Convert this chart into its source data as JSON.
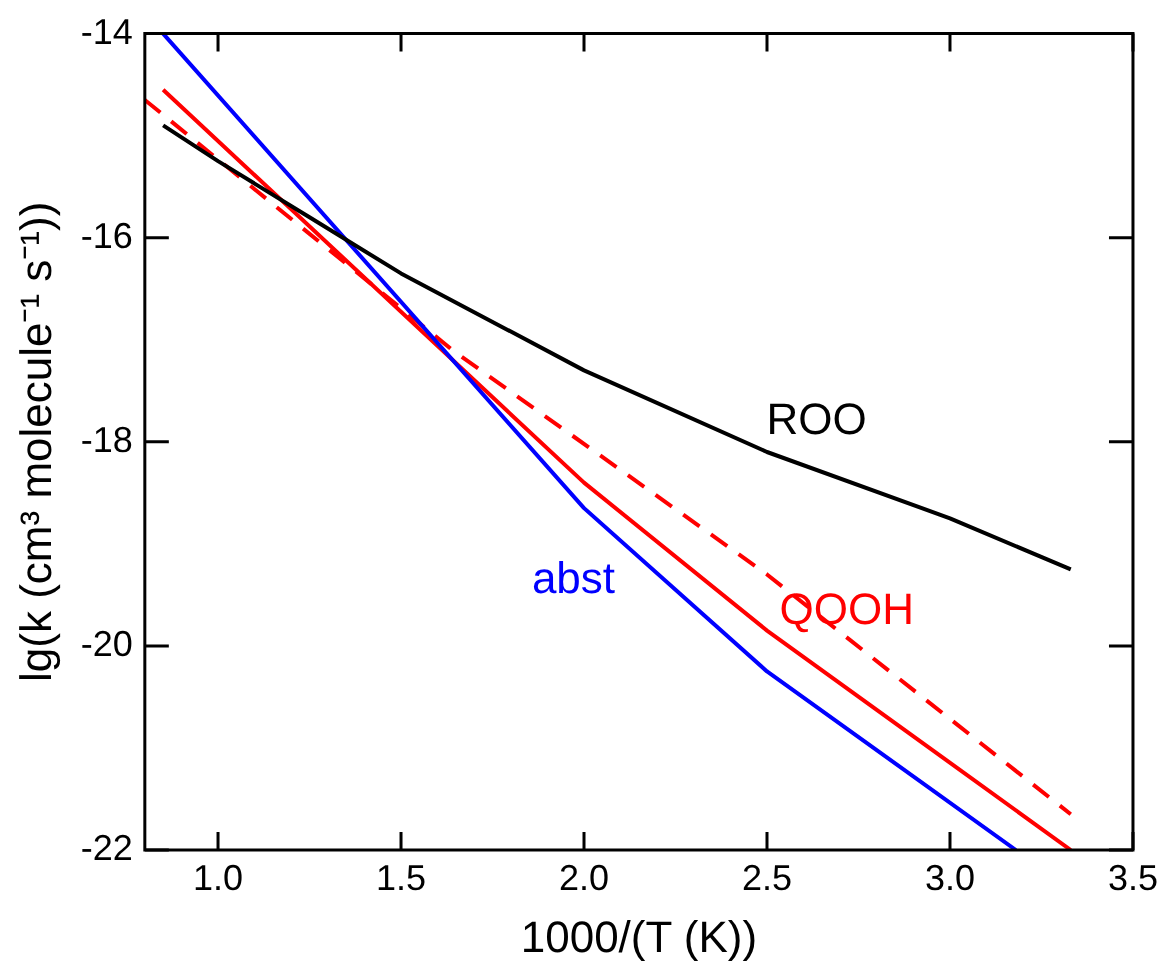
{
  "chart_data": {
    "type": "line",
    "xlabel": "1000/(T (K))",
    "ylabel": "lg(k (cm³ molecule⁻¹ s⁻¹))",
    "xlim": [
      0.8,
      3.5
    ],
    "xticks": [
      {
        "value": 1,
        "label": "1.0"
      },
      1.5,
      {
        "value": 2,
        "label": "2.0"
      },
      2.5,
      {
        "value": 3,
        "label": "3.0"
      },
      3.5
    ],
    "ylim": [
      -22,
      -14
    ],
    "yticks": [
      -22,
      -20,
      -18,
      -16,
      -14
    ],
    "grid": false,
    "legend": false,
    "marker": "none",
    "series": [
      {
        "name": "ROO",
        "color": "#000000",
        "x": [
          0.85,
          1.0,
          1.25,
          1.5,
          2.0,
          2.5,
          3.0,
          3.33
        ],
        "values": [
          -14.9,
          -15.25,
          -15.8,
          -16.35,
          -17.3,
          -18.1,
          -18.75,
          -19.25
        ]
      },
      {
        "name": "abst",
        "color": "#0000ff",
        "x": [
          0.85,
          2.0,
          2.5,
          3.18
        ],
        "values": [
          -14.0,
          -18.65,
          -20.25,
          -22.0
        ]
      },
      {
        "name": "QOOH",
        "color": "#ff0000",
        "x": [
          0.85,
          2.0,
          2.5,
          3.33
        ],
        "values": [
          -14.55,
          -18.4,
          -19.85,
          -22.0
        ]
      },
      {
        "color": "#ff0000",
        "line_style": "dashed",
        "x": [
          0.8,
          1.64,
          2.5,
          3.33
        ],
        "values": [
          -14.65,
          -17.1,
          -19.3,
          -21.65
        ]
      }
    ]
  }
}
